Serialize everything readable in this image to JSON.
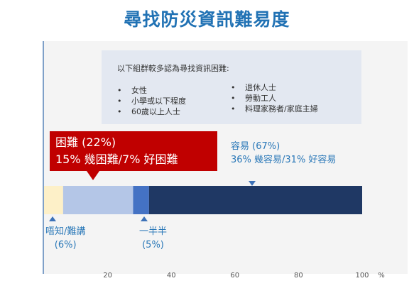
{
  "title": "尋找防災資訊難易度",
  "note": {
    "title": "以下組群較多認為尋找資訊困難:",
    "bullet": "•",
    "left_items": [
      "女性",
      "小學或以下程度",
      "60歲以上人士"
    ],
    "right_items": [
      "退休人士",
      "勞動工人",
      "料理家務者/家庭主婦"
    ]
  },
  "callout": {
    "line1": "困難 (22%)",
    "line2": "15% 幾困難/7% 好困難"
  },
  "easy_label": {
    "line1": "容易 (67%)",
    "line2": "36% 幾容易/31% 好容易"
  },
  "dont_know_label": {
    "line1": "唔知/難講",
    "line2": "(6%)"
  },
  "half_label": {
    "line1": "一半半",
    "line2": "(5%)"
  },
  "colors": {
    "title": "#2172b4",
    "callout": "#c00000",
    "dont_know": "#fdf0c8",
    "difficult": "#b4c6e7",
    "half": "#4472c4",
    "easy": "#1f3864"
  },
  "chart_data": {
    "type": "bar",
    "orientation": "horizontal",
    "stacked": true,
    "categories": [
      "尋找防災資訊難易度"
    ],
    "series": [
      {
        "name": "唔知/難講",
        "values": [
          6
        ]
      },
      {
        "name": "困難",
        "values": [
          22
        ]
      },
      {
        "name": "一半半",
        "values": [
          5
        ]
      },
      {
        "name": "容易",
        "values": [
          67
        ]
      }
    ],
    "xlim": [
      0,
      100
    ],
    "xticks": [
      "20",
      "40",
      "60",
      "80",
      "100"
    ],
    "xunit": "%",
    "grid": false
  }
}
